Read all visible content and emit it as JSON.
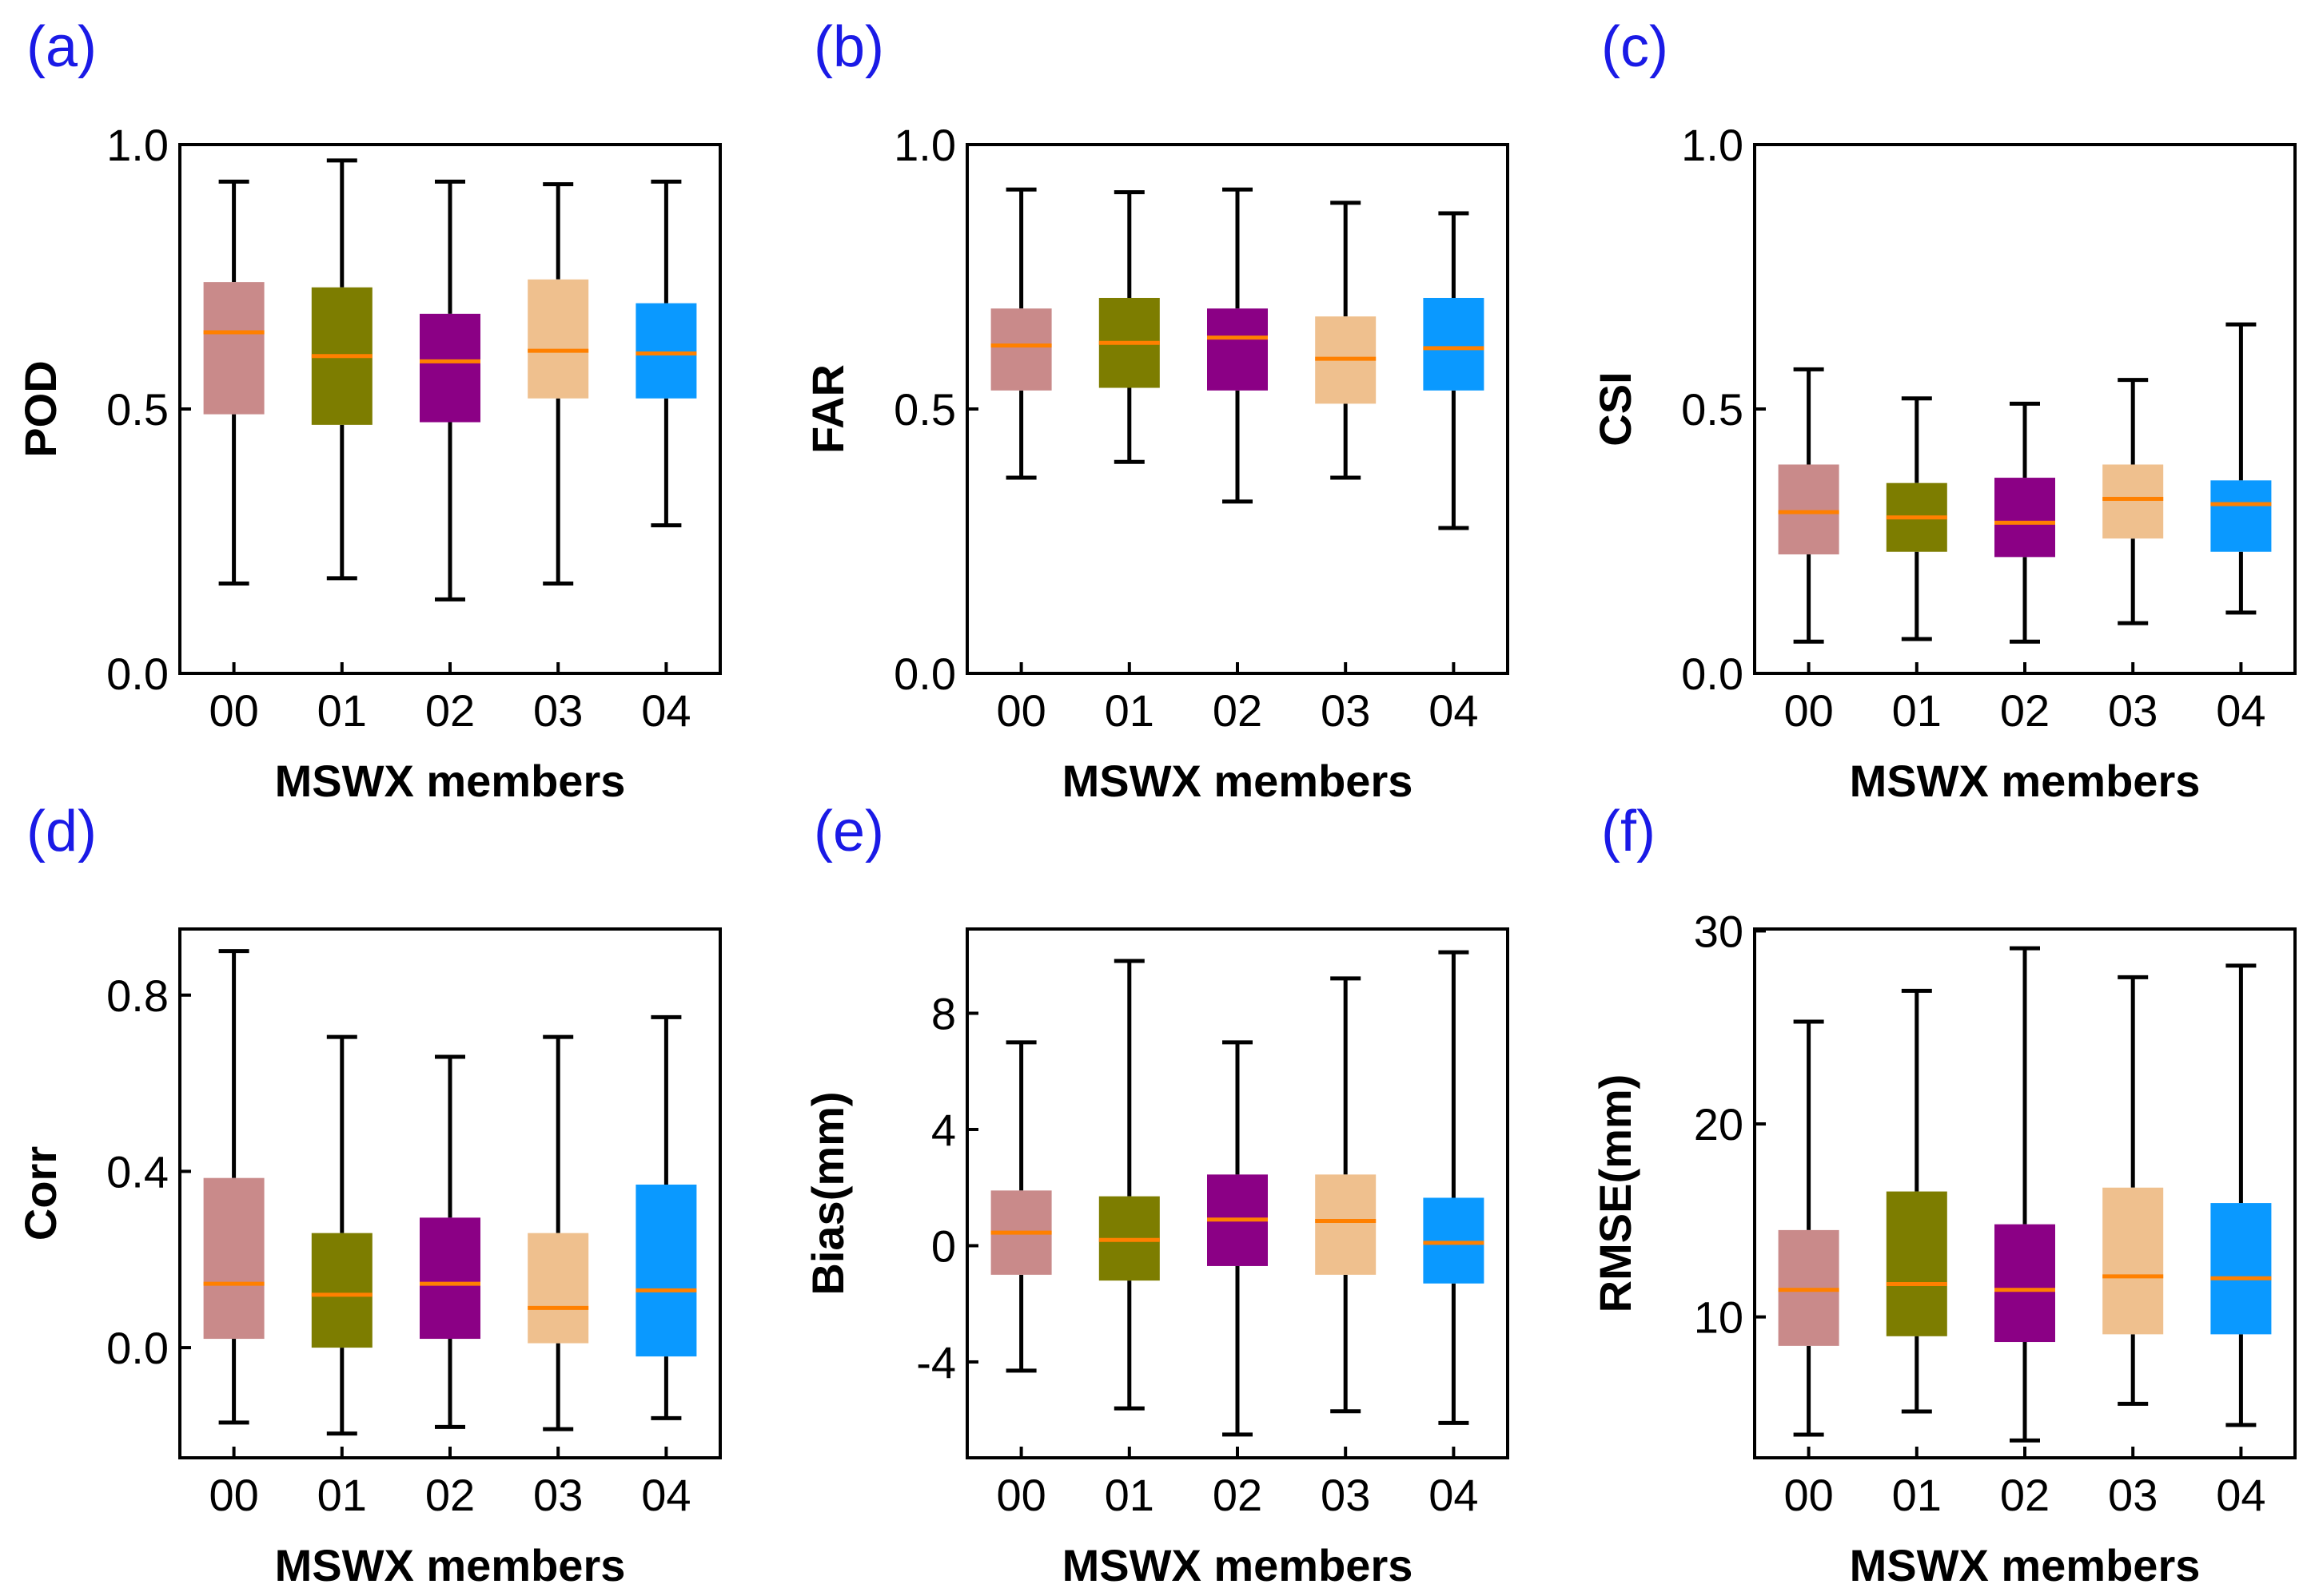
{
  "figure": {
    "box_colors": [
      "#c98a8a",
      "#7d7d00",
      "#8b0085",
      "#efc08e",
      "#0a99ff"
    ],
    "median_color": "#ff8000"
  },
  "chart_data": [
    {
      "type": "box",
      "panel_label": "(a)",
      "ylabel": "POD",
      "xlabel": "MSWX members",
      "categories": [
        "00",
        "01",
        "02",
        "03",
        "04"
      ],
      "ylim": [
        0.0,
        1.0
      ],
      "yticks": [
        0.0,
        0.5,
        1.0
      ],
      "ytick_labels": [
        "0.0",
        "0.5",
        "1.0"
      ],
      "boxes": [
        {
          "whislo": 0.17,
          "q1": 0.49,
          "med": 0.645,
          "q3": 0.74,
          "whishi": 0.93
        },
        {
          "whislo": 0.18,
          "q1": 0.47,
          "med": 0.6,
          "q3": 0.73,
          "whishi": 0.97
        },
        {
          "whislo": 0.14,
          "q1": 0.475,
          "med": 0.59,
          "q3": 0.68,
          "whishi": 0.93
        },
        {
          "whislo": 0.17,
          "q1": 0.52,
          "med": 0.61,
          "q3": 0.745,
          "whishi": 0.925
        },
        {
          "whislo": 0.28,
          "q1": 0.52,
          "med": 0.605,
          "q3": 0.7,
          "whishi": 0.93
        }
      ]
    },
    {
      "type": "box",
      "panel_label": "(b)",
      "ylabel": "FAR",
      "xlabel": "MSWX members",
      "categories": [
        "00",
        "01",
        "02",
        "03",
        "04"
      ],
      "ylim": [
        0.0,
        1.0
      ],
      "yticks": [
        0.0,
        0.5,
        1.0
      ],
      "ytick_labels": [
        "0.0",
        "0.5",
        "1.0"
      ],
      "boxes": [
        {
          "whislo": 0.37,
          "q1": 0.535,
          "med": 0.62,
          "q3": 0.69,
          "whishi": 0.915
        },
        {
          "whislo": 0.4,
          "q1": 0.54,
          "med": 0.625,
          "q3": 0.71,
          "whishi": 0.91
        },
        {
          "whislo": 0.325,
          "q1": 0.535,
          "med": 0.635,
          "q3": 0.69,
          "whishi": 0.915
        },
        {
          "whislo": 0.37,
          "q1": 0.51,
          "med": 0.595,
          "q3": 0.675,
          "whishi": 0.89
        },
        {
          "whislo": 0.275,
          "q1": 0.535,
          "med": 0.615,
          "q3": 0.71,
          "whishi": 0.87
        }
      ]
    },
    {
      "type": "box",
      "panel_label": "(c)",
      "ylabel": "CSI",
      "xlabel": "MSWX members",
      "categories": [
        "00",
        "01",
        "02",
        "03",
        "04"
      ],
      "ylim": [
        0.0,
        1.0
      ],
      "yticks": [
        0.0,
        0.5,
        1.0
      ],
      "ytick_labels": [
        "0.0",
        "0.5",
        "1.0"
      ],
      "boxes": [
        {
          "whislo": 0.06,
          "q1": 0.225,
          "med": 0.305,
          "q3": 0.395,
          "whishi": 0.575
        },
        {
          "whislo": 0.065,
          "q1": 0.23,
          "med": 0.295,
          "q3": 0.36,
          "whishi": 0.52
        },
        {
          "whislo": 0.06,
          "q1": 0.22,
          "med": 0.285,
          "q3": 0.37,
          "whishi": 0.51
        },
        {
          "whislo": 0.095,
          "q1": 0.255,
          "med": 0.33,
          "q3": 0.395,
          "whishi": 0.555
        },
        {
          "whislo": 0.115,
          "q1": 0.23,
          "med": 0.32,
          "q3": 0.365,
          "whishi": 0.66
        }
      ]
    },
    {
      "type": "box",
      "panel_label": "(d)",
      "ylabel": "Corr",
      "xlabel": "MSWX members",
      "categories": [
        "00",
        "01",
        "02",
        "03",
        "04"
      ],
      "ylim": [
        -0.25,
        0.95
      ],
      "yticks": [
        0.0,
        0.4,
        0.8
      ],
      "ytick_labels": [
        "0.0",
        "0.4",
        "0.8"
      ],
      "boxes": [
        {
          "whislo": -0.17,
          "q1": 0.02,
          "med": 0.145,
          "q3": 0.385,
          "whishi": 0.9
        },
        {
          "whislo": -0.195,
          "q1": 0.0,
          "med": 0.12,
          "q3": 0.26,
          "whishi": 0.705
        },
        {
          "whislo": -0.18,
          "q1": 0.02,
          "med": 0.145,
          "q3": 0.295,
          "whishi": 0.66
        },
        {
          "whislo": -0.185,
          "q1": 0.01,
          "med": 0.09,
          "q3": 0.26,
          "whishi": 0.705
        },
        {
          "whislo": -0.16,
          "q1": -0.02,
          "med": 0.13,
          "q3": 0.37,
          "whishi": 0.75
        }
      ]
    },
    {
      "type": "box",
      "panel_label": "(e)",
      "ylabel": "Bias(mm)",
      "xlabel": "MSWX members",
      "categories": [
        "00",
        "01",
        "02",
        "03",
        "04"
      ],
      "ylim": [
        -7.3,
        10.9
      ],
      "yticks": [
        -4,
        0,
        4,
        8
      ],
      "ytick_labels": [
        "-4",
        "0",
        "4",
        "8"
      ],
      "boxes": [
        {
          "whislo": -4.3,
          "q1": -1.0,
          "med": 0.45,
          "q3": 1.9,
          "whishi": 7.0
        },
        {
          "whislo": -5.6,
          "q1": -1.2,
          "med": 0.2,
          "q3": 1.7,
          "whishi": 9.8
        },
        {
          "whislo": -6.5,
          "q1": -0.7,
          "med": 0.9,
          "q3": 2.45,
          "whishi": 7.0
        },
        {
          "whislo": -5.7,
          "q1": -1.0,
          "med": 0.85,
          "q3": 2.45,
          "whishi": 9.2
        },
        {
          "whislo": -6.1,
          "q1": -1.3,
          "med": 0.1,
          "q3": 1.65,
          "whishi": 10.1
        }
      ]
    },
    {
      "type": "box",
      "panel_label": "(f)",
      "ylabel": "RMSE(mm)",
      "xlabel": "MSWX members",
      "categories": [
        "00",
        "01",
        "02",
        "03",
        "04"
      ],
      "ylim": [
        2.7,
        30.1
      ],
      "yticks": [
        10,
        20,
        30
      ],
      "ytick_labels": [
        "10",
        "20",
        "30"
      ],
      "boxes": [
        {
          "whislo": 3.9,
          "q1": 8.5,
          "med": 11.4,
          "q3": 14.5,
          "whishi": 25.3
        },
        {
          "whislo": 5.1,
          "q1": 9.0,
          "med": 11.7,
          "q3": 16.5,
          "whishi": 26.9
        },
        {
          "whislo": 3.6,
          "q1": 8.7,
          "med": 11.4,
          "q3": 14.8,
          "whishi": 29.1
        },
        {
          "whislo": 5.5,
          "q1": 9.1,
          "med": 12.1,
          "q3": 16.7,
          "whishi": 27.6
        },
        {
          "whislo": 4.4,
          "q1": 9.1,
          "med": 12.0,
          "q3": 15.9,
          "whishi": 28.2
        }
      ]
    }
  ]
}
